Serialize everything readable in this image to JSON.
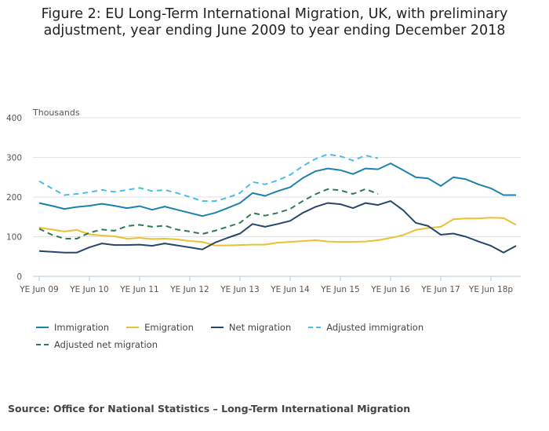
{
  "chart_data": {
    "type": "line",
    "title": "Figure 2: EU Long-Term International Migration, UK, with preliminary adjustment, year ending June 2009 to year ending December 2018",
    "ylabel": "Thousands",
    "xlabel": "",
    "ylim": [
      0,
      400
    ],
    "yticks": [
      "0",
      "100",
      "200",
      "300",
      "400"
    ],
    "xtick_labels": [
      "YE Jun 09",
      "YE Jun 10",
      "YE Jun 11",
      "YE Jun 12",
      "YE Jun 13",
      "YE Jun 14",
      "YE Jun 15",
      "YE Jun 16",
      "YE Jun 17",
      "YE Jun 18p"
    ],
    "x_note": "quarterly points, YE Jun 09 to YE Dec 18",
    "grid": true,
    "legend_position": "bottom",
    "series": [
      {
        "name": "Immigration",
        "color": "#1b82ad",
        "dashed": false,
        "values": [
          185,
          178,
          170,
          175,
          178,
          183,
          178,
          172,
          177,
          168,
          176,
          168,
          160,
          152,
          160,
          172,
          185,
          210,
          203,
          215,
          225,
          248,
          265,
          272,
          268,
          258,
          272,
          270,
          285,
          268,
          250,
          247,
          228,
          250,
          245,
          232,
          222,
          205,
          205
        ]
      },
      {
        "name": "Emigration",
        "color": "#ebc132",
        "dashed": false,
        "values": [
          123,
          118,
          113,
          117,
          106,
          103,
          101,
          95,
          97,
          94,
          95,
          93,
          89,
          87,
          78,
          78,
          79,
          80,
          80,
          85,
          87,
          89,
          91,
          88,
          87,
          87,
          88,
          91,
          97,
          104,
          117,
          122,
          125,
          144,
          146,
          146,
          148,
          147,
          130
        ]
      },
      {
        "name": "Net migration",
        "color": "#27466b",
        "dashed": false,
        "values": [
          64,
          62,
          60,
          60,
          73,
          83,
          79,
          79,
          80,
          77,
          83,
          78,
          73,
          68,
          85,
          97,
          108,
          132,
          125,
          132,
          140,
          160,
          175,
          185,
          182,
          172,
          185,
          180,
          190,
          167,
          135,
          127,
          105,
          108,
          100,
          88,
          77,
          60,
          77
        ]
      },
      {
        "name": "Adjusted immigration",
        "color": "#4bbde6",
        "dashed": true,
        "values": [
          240,
          222,
          205,
          208,
          212,
          218,
          213,
          218,
          223,
          215,
          218,
          210,
          200,
          190,
          190,
          198,
          210,
          238,
          232,
          242,
          256,
          278,
          296,
          308,
          303,
          292,
          305,
          298
        ]
      },
      {
        "name": "Adjusted net migration",
        "color": "#2f7a52",
        "dashed": true,
        "values": [
          120,
          105,
          95,
          95,
          110,
          118,
          115,
          127,
          130,
          125,
          128,
          118,
          113,
          107,
          115,
          125,
          135,
          160,
          153,
          160,
          170,
          190,
          207,
          220,
          217,
          208,
          220,
          208
        ]
      }
    ]
  },
  "source": "Source: Office for National Statistics – Long-Term International Migration"
}
